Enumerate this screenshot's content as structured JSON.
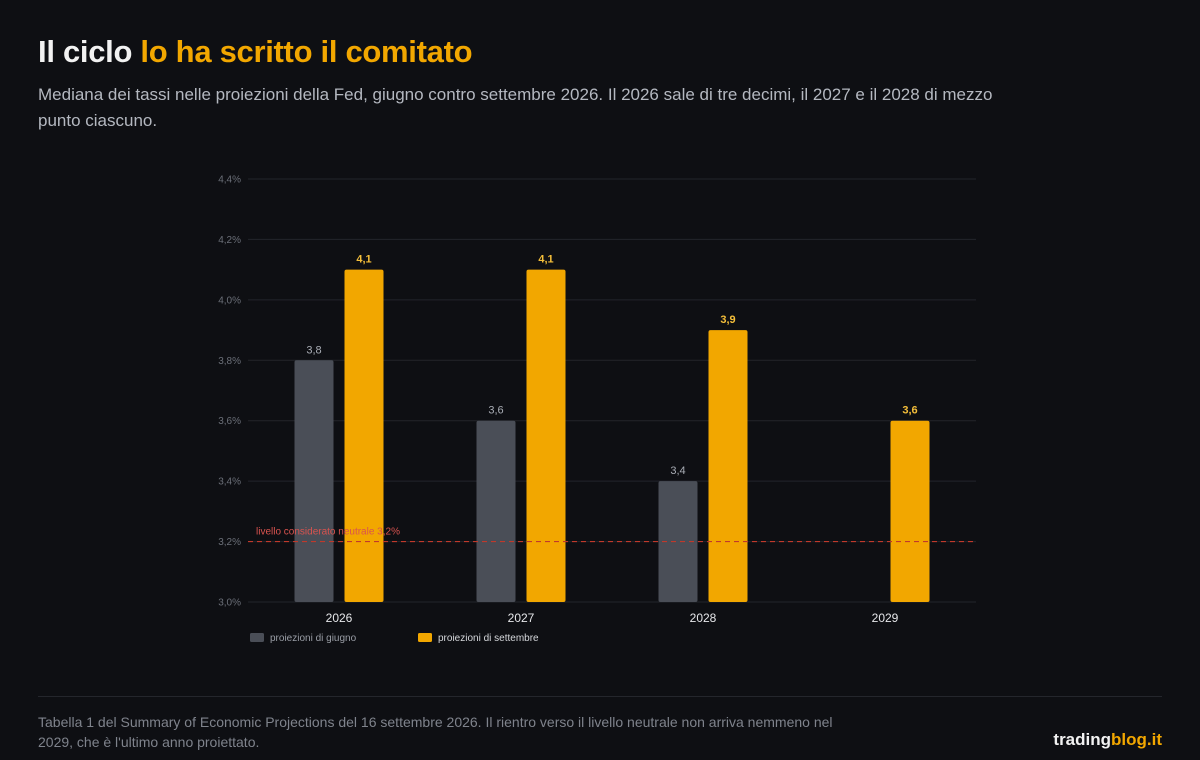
{
  "header": {
    "title_part1": "Il ciclo",
    "title_part2": "lo ha scritto il comitato",
    "subtitle": "Mediana dei tassi nelle proiezioni della Fed, giugno contro settembre 2026. Il 2026 sale di tre decimi, il 2027 e il 2028 di mezzo punto ciascuno."
  },
  "colors": {
    "june": "#4a4e57",
    "september": "#f2a700",
    "reference_line": "#c0392b",
    "grid": "#23252b"
  },
  "chart_data": {
    "type": "bar",
    "categories": [
      "2026",
      "2027",
      "2028",
      "2029"
    ],
    "series": [
      {
        "name": "proiezioni di giugno",
        "values": [
          3.8,
          3.6,
          3.4,
          null
        ],
        "labels": [
          "3,8",
          "3,6",
          "3,4",
          null
        ]
      },
      {
        "name": "proiezioni di settembre",
        "values": [
          4.1,
          4.1,
          3.9,
          3.6
        ],
        "labels": [
          "4,1",
          "4,1",
          "3,9",
          "3,6"
        ]
      }
    ],
    "ylim": [
      3.0,
      4.4
    ],
    "yticks": [
      3.0,
      3.2,
      3.4,
      3.6,
      3.8,
      4.0,
      4.2,
      4.4
    ],
    "ytick_labels": [
      "3,0%",
      "3,2%",
      "3,4%",
      "3,6%",
      "3,8%",
      "4,0%",
      "4,2%",
      "4,4%"
    ],
    "reference_line": {
      "value": 3.2,
      "label": "livello considerato neutrale 3,2%"
    },
    "grid": true,
    "legend_position": "bottom-left"
  },
  "footer": {
    "note": "Tabella 1 del Summary of Economic Projections del 16 settembre 2026. Il rientro verso il livello neutrale non arriva nemmeno nel 2029, che è l'ultimo anno proiettato.",
    "brand_part1": "trading",
    "brand_part2": "blog.it"
  }
}
